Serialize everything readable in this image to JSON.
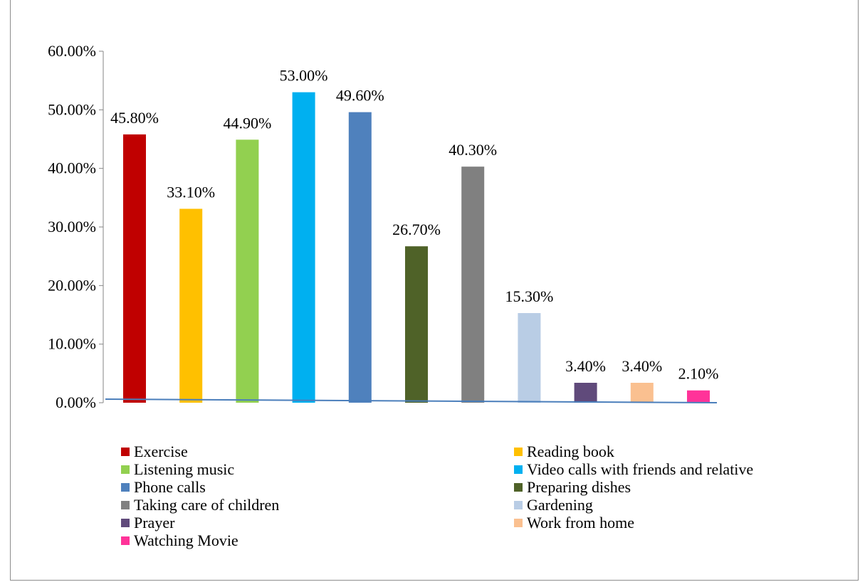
{
  "chart_data": {
    "type": "bar",
    "categories": [
      "Exercise",
      "Reading book",
      "Listening music",
      "Video calls with friends and relative",
      "Phone calls",
      "Preparing dishes",
      "Taking care of children",
      "Gardening",
      "Prayer",
      "Work from home",
      "Watching Movie"
    ],
    "values": [
      45.8,
      33.1,
      44.9,
      53.0,
      49.6,
      26.7,
      40.3,
      15.3,
      3.4,
      3.4,
      2.1
    ],
    "value_labels": [
      "45.80%",
      "33.10%",
      "44.90%",
      "53.00%",
      "49.60%",
      "26.70%",
      "40.30%",
      "15.30%",
      "3.40%",
      "3.40%",
      "2.10%"
    ],
    "colors": [
      "#c00000",
      "#ffc000",
      "#92d050",
      "#00b0f0",
      "#4f81bd",
      "#4f6228",
      "#808080",
      "#b9cde5",
      "#604a7b",
      "#fac090",
      "#ff3399"
    ],
    "yticks": [
      "0.00%",
      "10.00%",
      "20.00%",
      "30.00%",
      "40.00%",
      "50.00%",
      "60.00%"
    ],
    "ylim": [
      0,
      60
    ],
    "title": "",
    "xlabel": "",
    "ylabel": "",
    "legend_position": "bottom",
    "grid": false,
    "trendline_color": "#4a7ebb"
  }
}
